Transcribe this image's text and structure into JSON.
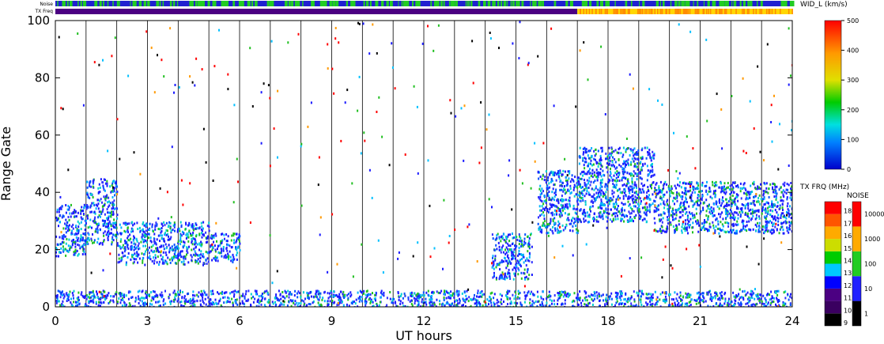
{
  "chart_data": {
    "type": "heatmap",
    "xlabel": "UT hours",
    "ylabel": "Range Gate",
    "xlim": [
      0,
      24
    ],
    "ylim": [
      0,
      100
    ],
    "xticks": [
      "0",
      "3",
      "6",
      "9",
      "12",
      "15",
      "18",
      "21",
      "24"
    ],
    "yticks": [
      "0",
      "20",
      "40",
      "60",
      "80",
      "100"
    ],
    "strips": {
      "noise_label": "Noise",
      "txfreq_label": "TX Freq"
    },
    "colorbars": {
      "width": {
        "title": "WID_L (km/s)",
        "ticks": [
          "0",
          "100",
          "200",
          "300",
          "400",
          "500"
        ]
      },
      "txfreq": {
        "title": "TX FRQ (MHz)",
        "ticks": [
          "9",
          "10",
          "11",
          "12",
          "13",
          "14",
          "15",
          "16",
          "17",
          "18"
        ]
      },
      "noise": {
        "title": "NOISE",
        "ticks": [
          "1",
          "10",
          "100",
          "1000",
          "10000"
        ]
      }
    },
    "scatter_regions": [
      {
        "t0": 0.0,
        "t1": 1.0,
        "gate_lo": 18,
        "gate_hi": 36,
        "value": "low"
      },
      {
        "t0": 1.0,
        "t1": 2.0,
        "gate_lo": 22,
        "gate_hi": 45,
        "value": "low"
      },
      {
        "t0": 2.0,
        "t1": 5.0,
        "gate_lo": 15,
        "gate_hi": 30,
        "value": "low"
      },
      {
        "t0": 5.0,
        "t1": 6.0,
        "gate_lo": 16,
        "gate_hi": 26,
        "value": "low"
      },
      {
        "t0": 14.2,
        "t1": 15.5,
        "gate_lo": 10,
        "gate_hi": 26,
        "value": "low"
      },
      {
        "t0": 15.7,
        "t1": 17.0,
        "gate_lo": 26,
        "gate_hi": 48,
        "value": "low"
      },
      {
        "t0": 17.0,
        "t1": 19.5,
        "gate_lo": 30,
        "gate_hi": 56,
        "value": "low"
      },
      {
        "t0": 19.5,
        "t1": 24.0,
        "gate_lo": 26,
        "gate_hi": 44,
        "value": "low"
      },
      {
        "t0": 0.0,
        "t1": 24.0,
        "gate_lo": 0,
        "gate_hi": 6,
        "value": "low"
      }
    ],
    "txfreq_change_hour": 17.0,
    "colors": {
      "scatter": "#1a1aff",
      "noise_main": "#2020d0",
      "noise_alt": "#22cc22",
      "txfreq_low": "#4b0082",
      "txfreq_high": "#ffd700"
    }
  }
}
